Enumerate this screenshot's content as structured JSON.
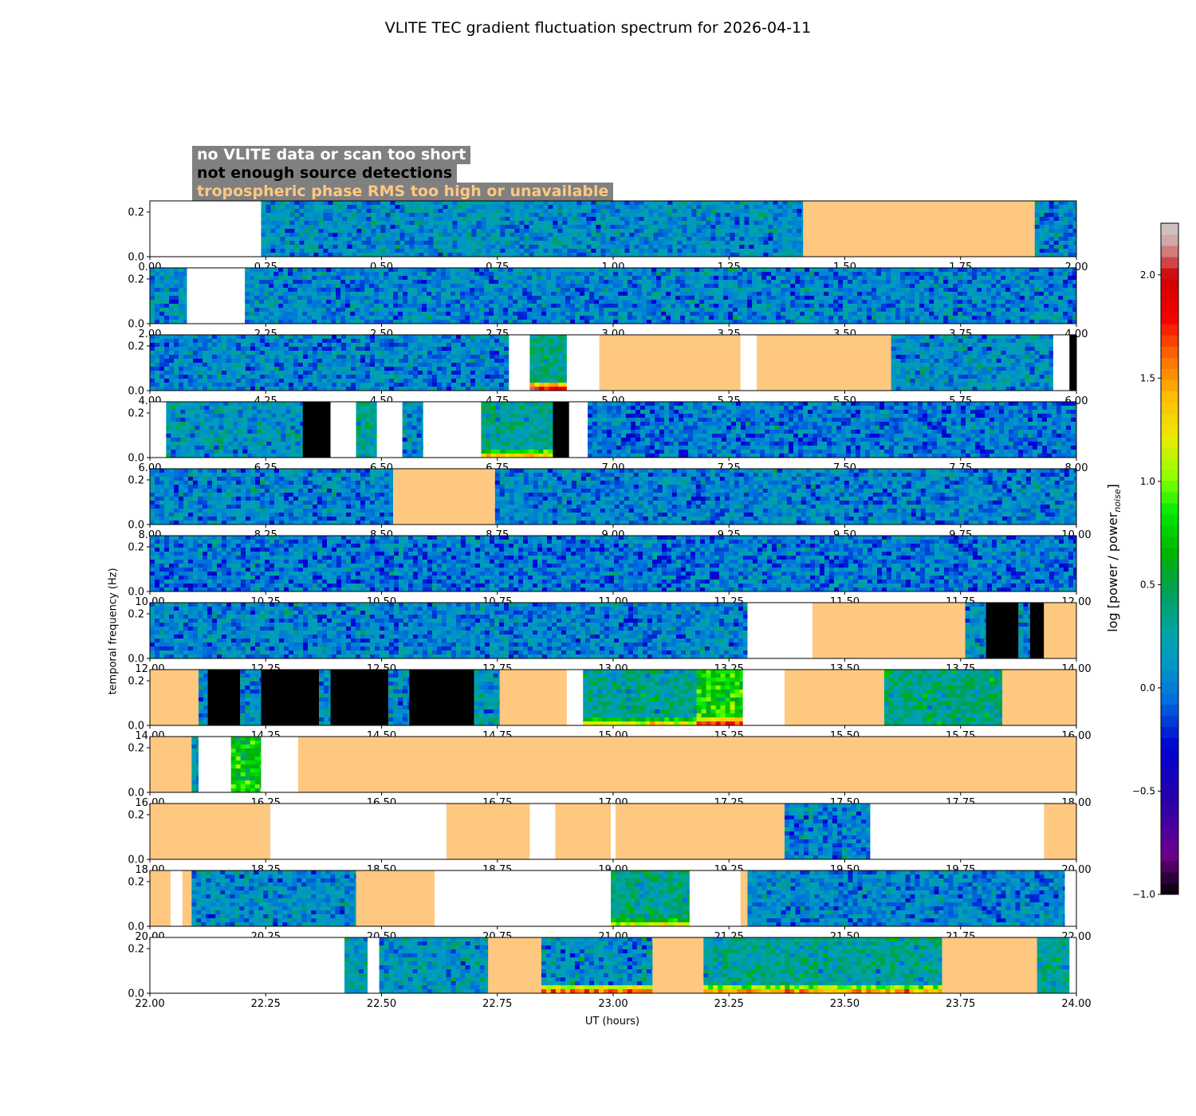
{
  "chart_data": {
    "type": "heatmap",
    "title": "VLITE TEC gradient fluctuation spectrum for 2026-04-11",
    "xlabel": "UT (hours)",
    "ylabel": "temporal frequency (Hz)",
    "colorbar": {
      "label_main": "log [power / power",
      "label_sub": "noise",
      "label_end": "]",
      "range": [
        -1.0,
        2.25
      ],
      "ticks": [
        -1.0,
        -0.5,
        0.0,
        0.5,
        1.0,
        1.5,
        2.0
      ],
      "tick_labels": [
        "−1.0",
        "−0.5",
        "0.0",
        "0.5",
        "1.0",
        "1.5",
        "2.0"
      ],
      "colormap": "nipy_spectral"
    },
    "legend": {
      "no_data": "no VLITE data or scan too short",
      "no_detections": "not enough source detections",
      "tropo": "tropospheric phase RMS too high or unavailable"
    },
    "status_colors": {
      "no_data": "#ffffff",
      "no_detections": "#000000",
      "tropo": "#ffc880"
    },
    "y_ticks": [
      0.0,
      0.2
    ],
    "y_tick_labels": [
      "0.0",
      "0.2"
    ],
    "ylim": [
      0,
      0.25
    ],
    "panels": [
      {
        "xlim": [
          0,
          2
        ],
        "xticks": [
          "0.00",
          "0.25",
          "0.50",
          "0.75",
          "1.00",
          "1.25",
          "1.50",
          "1.75",
          "2.00"
        ],
        "segments": [
          {
            "start": 0.0,
            "end": 0.24,
            "type": "no_data"
          },
          {
            "start": 0.24,
            "end": 1.41,
            "type": "data",
            "level": 0.1
          },
          {
            "start": 1.41,
            "end": 1.91,
            "type": "tropo"
          },
          {
            "start": 1.91,
            "end": 2.0,
            "type": "data",
            "level": 0.1
          }
        ]
      },
      {
        "xlim": [
          2,
          4
        ],
        "xticks": [
          "2.00",
          "2.25",
          "2.50",
          "2.75",
          "3.00",
          "3.25",
          "3.50",
          "3.75",
          "4.00"
        ],
        "segments": [
          {
            "start": 2.0,
            "end": 2.08,
            "type": "data",
            "level": 0.1
          },
          {
            "start": 2.08,
            "end": 2.205,
            "type": "no_data"
          },
          {
            "start": 2.205,
            "end": 4.0,
            "type": "data",
            "level": 0.05
          }
        ]
      },
      {
        "xlim": [
          4,
          6
        ],
        "xticks": [
          "4.00",
          "4.25",
          "4.50",
          "4.75",
          "5.00",
          "5.25",
          "5.50",
          "5.75",
          "6.00"
        ],
        "segments": [
          {
            "start": 4.0,
            "end": 4.775,
            "type": "data",
            "level": 0.05
          },
          {
            "start": 4.775,
            "end": 4.82,
            "type": "no_data"
          },
          {
            "start": 4.82,
            "end": 4.9,
            "type": "data",
            "level": 0.35,
            "low_freq_level": 1.9
          },
          {
            "start": 4.9,
            "end": 4.97,
            "type": "no_data"
          },
          {
            "start": 4.97,
            "end": 5.275,
            "type": "tropo"
          },
          {
            "start": 5.275,
            "end": 5.31,
            "type": "no_data"
          },
          {
            "start": 5.31,
            "end": 5.6,
            "type": "tropo"
          },
          {
            "start": 5.6,
            "end": 5.95,
            "type": "data",
            "level": 0.1
          },
          {
            "start": 5.95,
            "end": 5.985,
            "type": "no_data"
          },
          {
            "start": 5.985,
            "end": 6.0,
            "type": "no_detections"
          }
        ]
      },
      {
        "xlim": [
          6,
          8
        ],
        "xticks": [
          "6.00",
          "6.25",
          "6.50",
          "6.75",
          "7.00",
          "7.25",
          "7.50",
          "7.75",
          "8.00"
        ],
        "segments": [
          {
            "start": 6.0,
            "end": 6.035,
            "type": "no_data"
          },
          {
            "start": 6.035,
            "end": 6.33,
            "type": "data",
            "level": 0.15
          },
          {
            "start": 6.33,
            "end": 6.39,
            "type": "no_detections"
          },
          {
            "start": 6.39,
            "end": 6.445,
            "type": "no_data"
          },
          {
            "start": 6.445,
            "end": 6.49,
            "type": "data",
            "level": 0.3
          },
          {
            "start": 6.49,
            "end": 6.545,
            "type": "no_data"
          },
          {
            "start": 6.545,
            "end": 6.59,
            "type": "data",
            "level": 0.1
          },
          {
            "start": 6.59,
            "end": 6.715,
            "type": "no_data"
          },
          {
            "start": 6.715,
            "end": 6.87,
            "type": "data",
            "level": 0.3,
            "low_freq_level": 1.3
          },
          {
            "start": 6.87,
            "end": 6.905,
            "type": "no_detections"
          },
          {
            "start": 6.905,
            "end": 6.945,
            "type": "no_data"
          },
          {
            "start": 6.945,
            "end": 8.0,
            "type": "data",
            "level": 0.0
          }
        ]
      },
      {
        "xlim": [
          8,
          10
        ],
        "xticks": [
          "8.00",
          "8.25",
          "8.50",
          "8.75",
          "9.00",
          "9.25",
          "9.50",
          "9.75",
          "10.00"
        ],
        "segments": [
          {
            "start": 8.0,
            "end": 8.525,
            "type": "data",
            "level": 0.05
          },
          {
            "start": 8.525,
            "end": 8.745,
            "type": "tropo"
          },
          {
            "start": 8.745,
            "end": 10.0,
            "type": "data",
            "level": 0.05
          }
        ]
      },
      {
        "xlim": [
          10,
          12
        ],
        "xticks": [
          "10.00",
          "10.25",
          "10.50",
          "10.75",
          "11.00",
          "11.25",
          "11.50",
          "11.75",
          "12.00"
        ],
        "segments": [
          {
            "start": 10.0,
            "end": 12.0,
            "type": "data",
            "level": 0.0
          }
        ]
      },
      {
        "xlim": [
          12,
          14
        ],
        "xticks": [
          "12.00",
          "12.25",
          "12.50",
          "12.75",
          "13.00",
          "13.25",
          "13.50",
          "13.75",
          "14.00"
        ],
        "segments": [
          {
            "start": 12.0,
            "end": 13.29,
            "type": "data",
            "level": 0.05
          },
          {
            "start": 13.29,
            "end": 13.43,
            "type": "no_data"
          },
          {
            "start": 13.43,
            "end": 13.76,
            "type": "tropo"
          },
          {
            "start": 13.76,
            "end": 13.805,
            "type": "data",
            "level": 0.1
          },
          {
            "start": 13.805,
            "end": 13.875,
            "type": "no_detections"
          },
          {
            "start": 13.875,
            "end": 13.9,
            "type": "data",
            "level": 0.1
          },
          {
            "start": 13.9,
            "end": 13.93,
            "type": "no_detections"
          },
          {
            "start": 13.93,
            "end": 14.0,
            "type": "tropo"
          }
        ]
      },
      {
        "xlim": [
          14,
          16
        ],
        "xticks": [
          "14.00",
          "14.25",
          "14.50",
          "14.75",
          "15.00",
          "15.25",
          "15.50",
          "15.75",
          "16.00"
        ],
        "segments": [
          {
            "start": 14.0,
            "end": 14.105,
            "type": "tropo"
          },
          {
            "start": 14.105,
            "end": 14.125,
            "type": "data",
            "level": 0.1
          },
          {
            "start": 14.125,
            "end": 14.195,
            "type": "no_detections"
          },
          {
            "start": 14.195,
            "end": 14.24,
            "type": "data",
            "level": 0.1
          },
          {
            "start": 14.24,
            "end": 14.365,
            "type": "no_detections"
          },
          {
            "start": 14.365,
            "end": 14.39,
            "type": "data",
            "level": 0.1
          },
          {
            "start": 14.39,
            "end": 14.515,
            "type": "no_detections"
          },
          {
            "start": 14.515,
            "end": 14.56,
            "type": "data",
            "level": 0.1
          },
          {
            "start": 14.56,
            "end": 14.7,
            "type": "no_detections"
          },
          {
            "start": 14.7,
            "end": 14.755,
            "type": "data",
            "level": 0.15
          },
          {
            "start": 14.755,
            "end": 14.9,
            "type": "tropo"
          },
          {
            "start": 14.9,
            "end": 14.935,
            "type": "no_data"
          },
          {
            "start": 14.935,
            "end": 15.18,
            "type": "data",
            "level": 0.3,
            "low_freq_level": 1.2
          },
          {
            "start": 15.18,
            "end": 15.28,
            "type": "data",
            "level": 0.8,
            "low_freq_level": 1.8
          },
          {
            "start": 15.28,
            "end": 15.37,
            "type": "no_data"
          },
          {
            "start": 15.37,
            "end": 15.585,
            "type": "tropo"
          },
          {
            "start": 15.585,
            "end": 15.84,
            "type": "data",
            "level": 0.35
          },
          {
            "start": 15.84,
            "end": 16.0,
            "type": "tropo"
          }
        ]
      },
      {
        "xlim": [
          16,
          18
        ],
        "xticks": [
          "16.00",
          "16.25",
          "16.50",
          "16.75",
          "17.00",
          "17.25",
          "17.50",
          "17.75",
          "18.00"
        ],
        "segments": [
          {
            "start": 16.0,
            "end": 16.09,
            "type": "tropo"
          },
          {
            "start": 16.09,
            "end": 16.105,
            "type": "data",
            "level": 0.2
          },
          {
            "start": 16.105,
            "end": 16.175,
            "type": "no_data"
          },
          {
            "start": 16.175,
            "end": 16.24,
            "type": "data",
            "level": 0.7
          },
          {
            "start": 16.24,
            "end": 16.32,
            "type": "no_data"
          },
          {
            "start": 16.32,
            "end": 18.0,
            "type": "tropo"
          }
        ]
      },
      {
        "xlim": [
          18,
          20
        ],
        "xticks": [
          "18.00",
          "18.25",
          "18.50",
          "18.75",
          "19.00",
          "19.25",
          "19.50",
          "19.75",
          "20.00"
        ],
        "segments": [
          {
            "start": 18.0,
            "end": 18.26,
            "type": "tropo"
          },
          {
            "start": 18.26,
            "end": 18.64,
            "type": "no_data"
          },
          {
            "start": 18.64,
            "end": 18.82,
            "type": "tropo"
          },
          {
            "start": 18.82,
            "end": 18.875,
            "type": "no_data"
          },
          {
            "start": 18.875,
            "end": 18.995,
            "type": "tropo"
          },
          {
            "start": 18.995,
            "end": 19.005,
            "type": "no_data"
          },
          {
            "start": 19.005,
            "end": 19.37,
            "type": "tropo"
          },
          {
            "start": 19.37,
            "end": 19.555,
            "type": "data",
            "level": 0.05
          },
          {
            "start": 19.555,
            "end": 19.93,
            "type": "no_data"
          },
          {
            "start": 19.93,
            "end": 20.0,
            "type": "tropo"
          }
        ]
      },
      {
        "xlim": [
          20,
          22
        ],
        "xticks": [
          "20.00",
          "20.25",
          "20.50",
          "20.75",
          "21.00",
          "21.25",
          "21.50",
          "21.75",
          "22.00"
        ],
        "segments": [
          {
            "start": 20.0,
            "end": 20.045,
            "type": "tropo"
          },
          {
            "start": 20.045,
            "end": 20.07,
            "type": "no_data"
          },
          {
            "start": 20.07,
            "end": 20.09,
            "type": "tropo"
          },
          {
            "start": 20.09,
            "end": 20.445,
            "type": "data",
            "level": 0.1
          },
          {
            "start": 20.445,
            "end": 20.615,
            "type": "tropo"
          },
          {
            "start": 20.615,
            "end": 20.995,
            "type": "no_data"
          },
          {
            "start": 20.995,
            "end": 21.165,
            "type": "data",
            "level": 0.35,
            "low_freq_level": 1.2
          },
          {
            "start": 21.165,
            "end": 21.275,
            "type": "no_data"
          },
          {
            "start": 21.275,
            "end": 21.29,
            "type": "tropo"
          },
          {
            "start": 21.29,
            "end": 21.975,
            "type": "data",
            "level": 0.05
          },
          {
            "start": 21.975,
            "end": 22.0,
            "type": "no_data"
          }
        ]
      },
      {
        "xlim": [
          22,
          24
        ],
        "xticks": [
          "22.00",
          "22.25",
          "22.50",
          "22.75",
          "23.00",
          "23.25",
          "23.50",
          "23.75",
          "24.00"
        ],
        "segments": [
          {
            "start": 22.0,
            "end": 22.42,
            "type": "no_data"
          },
          {
            "start": 22.42,
            "end": 22.47,
            "type": "data",
            "level": 0.2
          },
          {
            "start": 22.47,
            "end": 22.495,
            "type": "no_data"
          },
          {
            "start": 22.495,
            "end": 22.73,
            "type": "data",
            "level": 0.15
          },
          {
            "start": 22.73,
            "end": 22.845,
            "type": "tropo"
          },
          {
            "start": 22.845,
            "end": 23.085,
            "type": "data",
            "level": 0.1,
            "low_freq_level": 1.6
          },
          {
            "start": 23.085,
            "end": 23.195,
            "type": "tropo"
          },
          {
            "start": 23.195,
            "end": 23.71,
            "type": "data",
            "level": 0.3,
            "low_freq_level": 1.5
          },
          {
            "start": 23.71,
            "end": 23.915,
            "type": "tropo"
          },
          {
            "start": 23.915,
            "end": 23.985,
            "type": "data",
            "level": 0.3
          },
          {
            "start": 23.985,
            "end": 24.0,
            "type": "no_data"
          }
        ]
      }
    ]
  }
}
